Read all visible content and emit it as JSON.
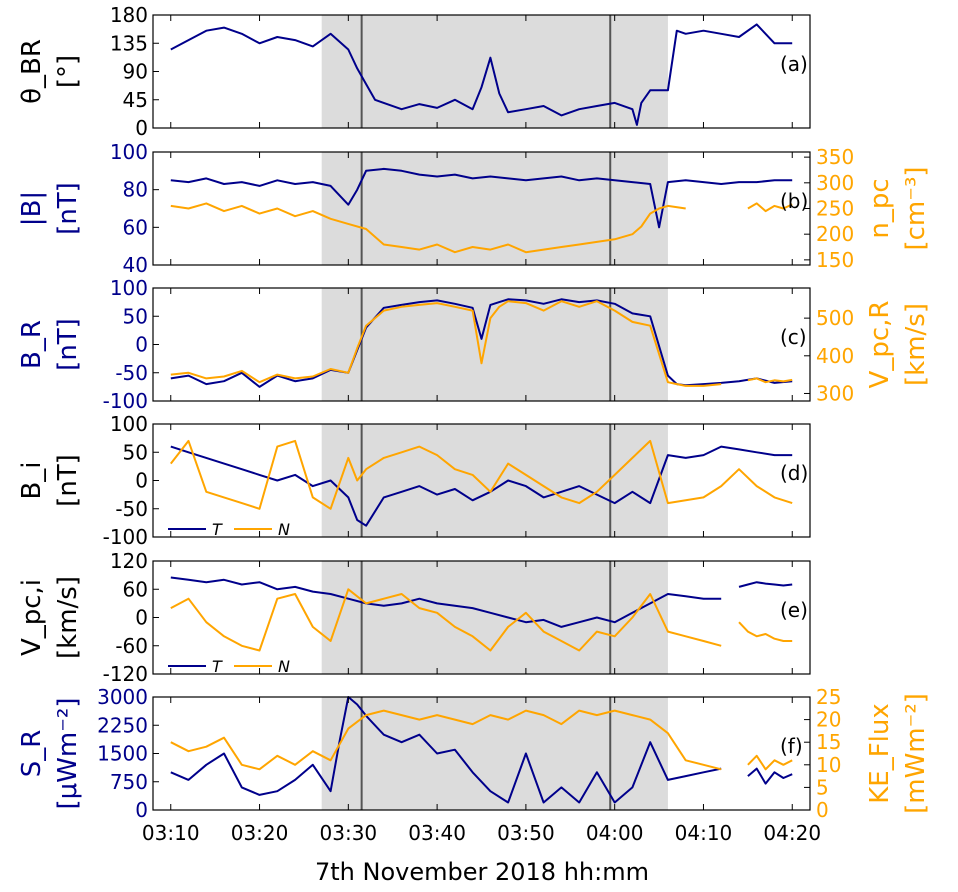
{
  "figure": {
    "xlabel": "7th November 2018  hh:mm",
    "x_ticks": [
      "03:10",
      "03:20",
      "03:30",
      "03:40",
      "03:50",
      "04:00",
      "04:10",
      "04:20"
    ],
    "x_range_min": [
      8,
      82
    ],
    "shaded_interval_min": [
      27,
      66
    ],
    "boundary_lines_min": [
      31.5,
      59.5
    ],
    "colors": {
      "primary": "#00008b",
      "secondary": "#ffa500",
      "shade": "#dcdcdc",
      "boundary": "#555555"
    }
  },
  "chart_data": [
    {
      "type": "line",
      "panel": "(a)",
      "ylabel": [
        "θ_BR",
        "[°]"
      ],
      "ylim": [
        0,
        180
      ],
      "yticks": [
        0,
        45,
        90,
        135,
        180
      ],
      "series": [
        {
          "name": "theta_BR",
          "color": "#00008b",
          "x": [
            10,
            12,
            14,
            16,
            18,
            20,
            22,
            24,
            26,
            28,
            30,
            31,
            32,
            33,
            34,
            36,
            38,
            40,
            42,
            44,
            45,
            46,
            47,
            48,
            50,
            52,
            54,
            56,
            58,
            60,
            62,
            62.5,
            63,
            64,
            66,
            67,
            68,
            70,
            72,
            74,
            76,
            78,
            80
          ],
          "y": [
            125,
            140,
            155,
            160,
            150,
            135,
            145,
            140,
            130,
            150,
            125,
            95,
            70,
            45,
            40,
            30,
            38,
            32,
            45,
            30,
            65,
            112,
            55,
            25,
            30,
            35,
            20,
            30,
            35,
            40,
            30,
            5,
            40,
            60,
            60,
            155,
            150,
            155,
            150,
            145,
            165,
            135,
            135
          ]
        }
      ]
    },
    {
      "type": "line",
      "panel": "(b)",
      "ylabel": [
        "|B|",
        "[nT]"
      ],
      "ylabel_right": [
        "n_pc",
        "[cm⁻³]"
      ],
      "ylim": [
        40,
        100
      ],
      "yticks": [
        40,
        60,
        80,
        100
      ],
      "ylim_right": [
        140,
        360
      ],
      "yticks_right": [
        150,
        200,
        250,
        300,
        350
      ],
      "series": [
        {
          "name": "|B|",
          "color": "#00008b",
          "x": [
            10,
            12,
            14,
            16,
            18,
            20,
            22,
            24,
            26,
            28,
            30,
            31,
            32,
            34,
            36,
            38,
            40,
            42,
            44,
            46,
            48,
            50,
            52,
            54,
            56,
            58,
            60,
            62,
            64,
            65,
            66,
            68,
            70,
            72,
            74,
            76,
            78,
            80
          ],
          "y": [
            85,
            84,
            86,
            83,
            84,
            82,
            85,
            83,
            84,
            82,
            72,
            80,
            90,
            91,
            90,
            88,
            87,
            88,
            86,
            87,
            86,
            85,
            86,
            87,
            85,
            86,
            85,
            84,
            83,
            60,
            84,
            85,
            84,
            83,
            84,
            84,
            85,
            85
          ]
        },
        {
          "name": "n_pc",
          "axis": "right",
          "color": "#ffa500",
          "x": [
            10,
            12,
            14,
            16,
            18,
            20,
            22,
            24,
            26,
            28,
            30,
            32,
            34,
            36,
            38,
            40,
            42,
            44,
            46,
            48,
            50,
            52,
            54,
            56,
            58,
            60,
            62,
            63,
            64,
            65,
            66,
            68
          ],
          "y": [
            255,
            250,
            260,
            245,
            255,
            240,
            250,
            235,
            245,
            230,
            220,
            210,
            180,
            175,
            170,
            180,
            165,
            175,
            170,
            180,
            165,
            170,
            175,
            180,
            185,
            190,
            200,
            215,
            240,
            250,
            255,
            250
          ]
        },
        {
          "name": "n_pc late",
          "axis": "right",
          "color": "#ffa500",
          "x": [
            75,
            76,
            77,
            78,
            79,
            80
          ],
          "y": [
            250,
            260,
            245,
            255,
            250,
            258
          ]
        }
      ]
    },
    {
      "type": "line",
      "panel": "(c)",
      "ylabel": [
        "B_R",
        "[nT]"
      ],
      "ylabel_right": [
        "V_pc,R",
        "[km/s]"
      ],
      "ylim": [
        -100,
        100
      ],
      "yticks": [
        -100,
        -50,
        0,
        50,
        100
      ],
      "ylim_right": [
        280,
        580
      ],
      "yticks_right": [
        300,
        400,
        500
      ],
      "series": [
        {
          "name": "B_R",
          "color": "#00008b",
          "x": [
            10,
            12,
            14,
            16,
            18,
            20,
            22,
            24,
            26,
            28,
            30,
            31,
            32,
            34,
            36,
            38,
            40,
            42,
            44,
            45,
            46,
            47,
            48,
            50,
            52,
            54,
            56,
            58,
            60,
            62,
            64,
            66,
            67,
            68,
            70,
            72,
            74,
            76,
            78,
            80
          ],
          "y": [
            -60,
            -55,
            -70,
            -65,
            -50,
            -75,
            -55,
            -65,
            -60,
            -45,
            -50,
            -10,
            30,
            65,
            70,
            75,
            78,
            72,
            65,
            10,
            70,
            75,
            80,
            78,
            72,
            80,
            75,
            78,
            72,
            55,
            50,
            -55,
            -70,
            -72,
            -70,
            -68,
            -65,
            -60,
            -68,
            -65
          ]
        },
        {
          "name": "V_pc,R",
          "axis": "right",
          "color": "#ffa500",
          "x": [
            10,
            12,
            14,
            16,
            18,
            20,
            22,
            24,
            26,
            28,
            30,
            31,
            32,
            34,
            36,
            38,
            40,
            42,
            44,
            45,
            46,
            47,
            48,
            50,
            52,
            54,
            56,
            58,
            60,
            62,
            64,
            66,
            67,
            68,
            70,
            72
          ],
          "y": [
            350,
            355,
            340,
            345,
            360,
            330,
            350,
            340,
            345,
            365,
            355,
            420,
            480,
            520,
            530,
            535,
            540,
            530,
            520,
            380,
            500,
            530,
            545,
            540,
            520,
            545,
            530,
            545,
            520,
            490,
            480,
            330,
            325,
            320,
            320,
            325
          ]
        },
        {
          "name": "V_pc,R late",
          "axis": "right",
          "color": "#ffa500",
          "x": [
            75,
            76,
            77,
            78,
            79,
            80
          ],
          "y": [
            335,
            340,
            330,
            335,
            332,
            336
          ]
        }
      ]
    },
    {
      "type": "line",
      "panel": "(d)",
      "ylabel": [
        "B_i",
        "[nT]"
      ],
      "ylim": [
        -100,
        100
      ],
      "yticks": [
        -100,
        -50,
        0,
        50,
        100
      ],
      "legend": [
        "T",
        "N"
      ],
      "series": [
        {
          "name": "T",
          "color": "#00008b",
          "x": [
            10,
            12,
            14,
            16,
            18,
            20,
            22,
            24,
            26,
            28,
            30,
            31,
            32,
            34,
            36,
            38,
            40,
            42,
            44,
            46,
            48,
            50,
            52,
            54,
            56,
            58,
            60,
            62,
            64,
            66,
            68,
            70,
            72,
            74,
            76,
            78,
            80
          ],
          "y": [
            60,
            50,
            40,
            30,
            20,
            10,
            0,
            10,
            -10,
            0,
            -30,
            -70,
            -80,
            -30,
            -20,
            -10,
            -25,
            -15,
            -35,
            -20,
            0,
            -10,
            -30,
            -20,
            -10,
            -25,
            -40,
            -20,
            -40,
            45,
            40,
            45,
            60,
            55,
            50,
            45,
            45
          ]
        },
        {
          "name": "N",
          "color": "#ffa500",
          "x": [
            10,
            12,
            14,
            16,
            18,
            20,
            22,
            24,
            26,
            28,
            30,
            31,
            32,
            34,
            36,
            38,
            40,
            42,
            44,
            46,
            48,
            50,
            52,
            54,
            56,
            58,
            60,
            62,
            64,
            66,
            68,
            70,
            72,
            74,
            76,
            78,
            80
          ],
          "y": [
            30,
            70,
            -20,
            -30,
            -40,
            -50,
            60,
            70,
            -30,
            -50,
            40,
            0,
            20,
            40,
            50,
            60,
            45,
            20,
            10,
            -20,
            30,
            10,
            -10,
            -30,
            -40,
            -20,
            10,
            40,
            70,
            -40,
            -35,
            -30,
            -10,
            20,
            -10,
            -30,
            -40
          ]
        }
      ]
    },
    {
      "type": "line",
      "panel": "(e)",
      "ylabel": [
        "V_pc,i",
        "[km/s]"
      ],
      "ylim": [
        -120,
        120
      ],
      "yticks": [
        -120,
        -60,
        0,
        60,
        120
      ],
      "legend": [
        "T",
        "N"
      ],
      "series": [
        {
          "name": "T",
          "color": "#00008b",
          "x": [
            10,
            12,
            14,
            16,
            18,
            20,
            22,
            24,
            26,
            28,
            30,
            32,
            34,
            36,
            38,
            40,
            42,
            44,
            46,
            48,
            50,
            52,
            54,
            56,
            58,
            60,
            62,
            64,
            66,
            68,
            70,
            72
          ],
          "y": [
            85,
            80,
            75,
            80,
            70,
            75,
            60,
            65,
            55,
            50,
            40,
            30,
            25,
            30,
            40,
            30,
            25,
            20,
            10,
            0,
            -10,
            -5,
            -20,
            -10,
            0,
            -10,
            10,
            30,
            50,
            45,
            40,
            40
          ]
        },
        {
          "name": "T late",
          "color": "#00008b",
          "x": [
            74,
            75,
            76,
            77,
            78,
            79,
            80
          ],
          "y": [
            65,
            70,
            75,
            72,
            70,
            68,
            70
          ]
        },
        {
          "name": "N",
          "color": "#ffa500",
          "x": [
            10,
            12,
            14,
            16,
            18,
            20,
            22,
            24,
            26,
            28,
            30,
            32,
            34,
            36,
            38,
            40,
            42,
            44,
            46,
            48,
            50,
            52,
            54,
            56,
            58,
            60,
            62,
            64,
            66,
            68,
            70,
            72
          ],
          "y": [
            20,
            40,
            -10,
            -40,
            -60,
            -70,
            40,
            50,
            -20,
            -50,
            60,
            30,
            40,
            50,
            20,
            10,
            -20,
            -40,
            -70,
            -20,
            10,
            -30,
            -50,
            -70,
            -30,
            -40,
            0,
            50,
            -30,
            -40,
            -50,
            -60
          ]
        },
        {
          "name": "N late",
          "color": "#ffa500",
          "x": [
            74,
            75,
            76,
            77,
            78,
            79,
            80
          ],
          "y": [
            -10,
            -30,
            -40,
            -35,
            -45,
            -50,
            -50
          ]
        }
      ]
    },
    {
      "type": "line",
      "panel": "(f)",
      "ylabel": [
        "S_R",
        "[μWm⁻²]"
      ],
      "ylabel_right": [
        "KE_Flux",
        "[mWm⁻²]"
      ],
      "ylim": [
        0,
        3000
      ],
      "yticks": [
        0,
        750,
        1500,
        2250,
        3000
      ],
      "ylim_right": [
        0,
        25
      ],
      "yticks_right": [
        0,
        5,
        10,
        15,
        20,
        25
      ],
      "series": [
        {
          "name": "S_R",
          "color": "#00008b",
          "x": [
            10,
            12,
            14,
            16,
            18,
            20,
            22,
            24,
            26,
            28,
            29,
            30,
            31,
            32,
            34,
            36,
            38,
            40,
            42,
            44,
            46,
            48,
            50,
            52,
            54,
            56,
            58,
            60,
            62,
            64,
            66,
            68,
            70,
            72
          ],
          "y": [
            1000,
            800,
            1200,
            1500,
            600,
            400,
            500,
            800,
            1200,
            500,
            1800,
            3000,
            2800,
            2500,
            2000,
            1800,
            2000,
            1500,
            1600,
            1000,
            500,
            200,
            1500,
            200,
            600,
            200,
            1000,
            200,
            600,
            1800,
            800,
            900,
            1000,
            1100
          ]
        },
        {
          "name": "S_R late",
          "color": "#00008b",
          "x": [
            75,
            76,
            77,
            78,
            79,
            80
          ],
          "y": [
            900,
            1100,
            700,
            1000,
            850,
            950
          ]
        },
        {
          "name": "KE_Flux",
          "axis": "right",
          "color": "#ffa500",
          "x": [
            10,
            12,
            14,
            16,
            18,
            20,
            22,
            24,
            26,
            28,
            30,
            32,
            34,
            36,
            38,
            40,
            42,
            44,
            46,
            48,
            50,
            52,
            54,
            56,
            58,
            60,
            62,
            64,
            66,
            68,
            70,
            72
          ],
          "y": [
            15,
            13,
            14,
            16,
            10,
            9,
            12,
            10,
            13,
            11,
            18,
            21,
            22,
            21,
            20,
            21,
            20,
            19,
            21,
            20,
            22,
            21,
            19,
            22,
            21,
            22,
            21,
            20,
            17,
            11,
            10,
            9
          ]
        },
        {
          "name": "KE_Flux late",
          "axis": "right",
          "color": "#ffa500",
          "x": [
            75,
            76,
            77,
            78,
            79,
            80
          ],
          "y": [
            10,
            12,
            9,
            11,
            10,
            11
          ]
        }
      ]
    }
  ]
}
